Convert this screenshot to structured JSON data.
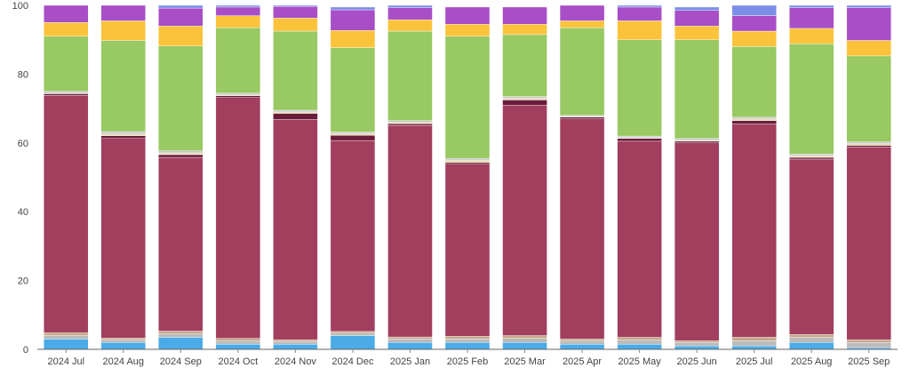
{
  "chart_data": {
    "type": "bar",
    "stacked": true,
    "title": "",
    "xlabel": "",
    "ylabel": "",
    "ylim": [
      0,
      100
    ],
    "yticks": [
      0,
      20,
      40,
      60,
      80,
      100
    ],
    "grid": false,
    "legend": "none",
    "categories": [
      "2024 Jul",
      "2024 Aug",
      "2024 Sep",
      "2024 Oct",
      "2024 Nov",
      "2024 Dec",
      "2025 Jan",
      "2025 Feb",
      "2025 Mar",
      "2025 Apr",
      "2025 May",
      "2025 Jun",
      "2025 Jul",
      "2025 Aug",
      "2025 Sep"
    ],
    "series": [
      {
        "color": "#4aabe6",
        "values": [
          3.0,
          2.0,
          3.5,
          1.5,
          1.5,
          4.0,
          2.0,
          2.0,
          2.0,
          1.5,
          1.5,
          1.0,
          1.0,
          2.0,
          0.5
        ]
      },
      {
        "color": "#bbbbbb",
        "values": [
          1.0,
          0.8,
          1.0,
          1.0,
          0.8,
          0.7,
          1.0,
          1.0,
          1.2,
          1.0,
          1.2,
          1.0,
          1.5,
          1.5,
          1.5
        ]
      },
      {
        "color": "#c9a98a",
        "values": [
          0.8,
          0.5,
          0.8,
          0.7,
          0.5,
          0.5,
          0.6,
          0.8,
          0.8,
          0.5,
          0.8,
          0.5,
          1.0,
          0.8,
          0.8
        ]
      },
      {
        "color": "#a23e5e",
        "values": [
          69.0,
          58.0,
          50.5,
          70.0,
          64.0,
          55.5,
          61.5,
          50.0,
          67.0,
          64.0,
          57.0,
          57.5,
          62.0,
          51.0,
          56.0
        ]
      },
      {
        "color": "#6b1c3a",
        "values": [
          0.5,
          0.8,
          0.8,
          0.5,
          1.8,
          1.5,
          0.5,
          0.5,
          1.5,
          0.5,
          0.8,
          0.5,
          1.0,
          0.5,
          0.5
        ]
      },
      {
        "color": "#e8d9b0",
        "values": [
          0.2,
          0.5,
          0.5,
          0.3,
          0.4,
          0.5,
          0.4,
          0.7,
          0.5,
          0.2,
          0.2,
          0.3,
          0.5,
          0.5,
          0.5
        ]
      },
      {
        "color": "#c7c7c7",
        "values": [
          0.5,
          0.7,
          0.6,
          0.5,
          0.5,
          0.5,
          0.5,
          0.5,
          0.5,
          0.3,
          0.5,
          0.5,
          0.5,
          0.5,
          0.5
        ]
      },
      {
        "color": "#98c962",
        "values": [
          16.0,
          26.5,
          30.5,
          19.0,
          23.0,
          24.5,
          26.0,
          35.5,
          18.0,
          25.5,
          28.0,
          28.7,
          20.5,
          32.0,
          25.0
        ]
      },
      {
        "color": "#fac33b",
        "values": [
          4.0,
          5.7,
          5.8,
          3.5,
          3.8,
          5.0,
          3.3,
          3.5,
          3.0,
          2.0,
          5.5,
          4.0,
          4.5,
          4.5,
          4.5
        ]
      },
      {
        "color": "#a84ec7",
        "values": [
          5.0,
          4.5,
          5.2,
          2.5,
          3.4,
          6.0,
          3.5,
          5.0,
          5.0,
          4.5,
          4.0,
          4.5,
          4.5,
          6.0,
          9.5
        ]
      },
      {
        "color": "#7b8ee8",
        "values": [
          0.0,
          0.0,
          0.8,
          0.5,
          0.3,
          0.8,
          0.7,
          0.0,
          0.0,
          0.0,
          0.5,
          1.0,
          3.0,
          0.7,
          0.7
        ]
      }
    ]
  }
}
